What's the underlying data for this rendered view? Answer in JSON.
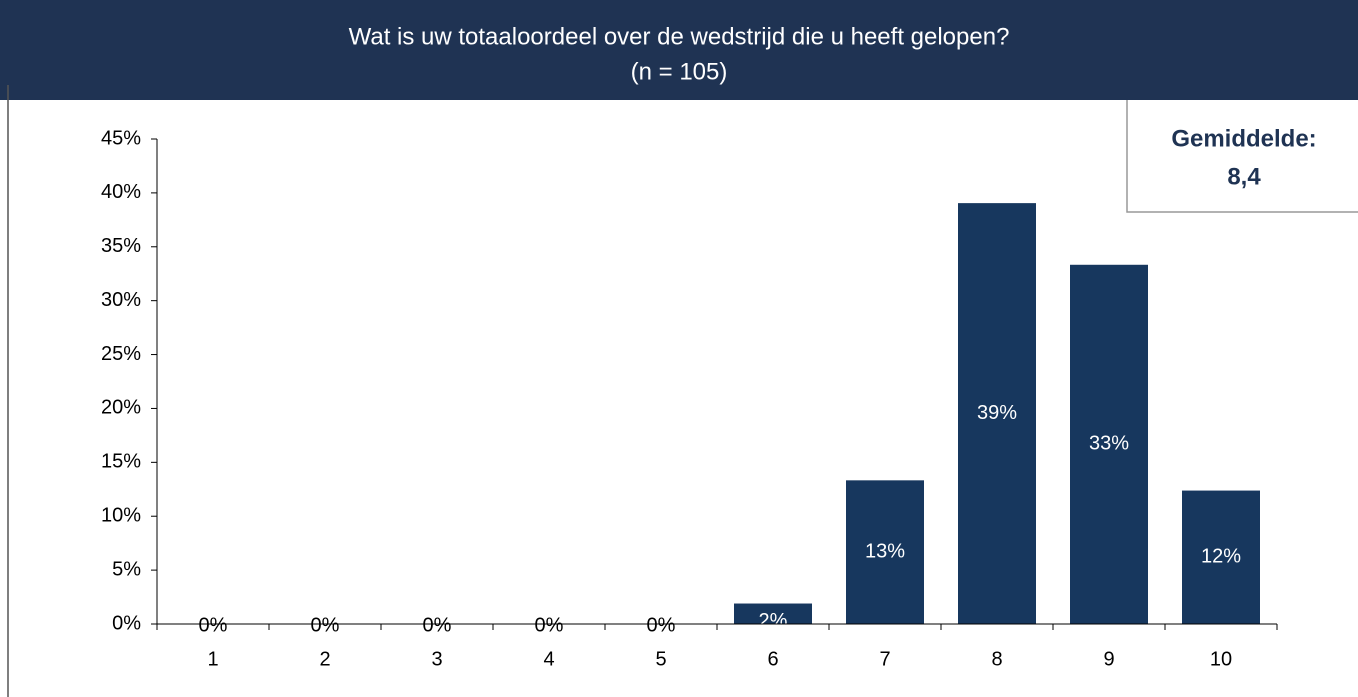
{
  "chart_data": {
    "type": "bar",
    "title": "Wat is uw totaaloordeel over de wedstrijd die u heeft gelopen?",
    "subtitle": "(n = 105)",
    "annotation": {
      "label": "Gemiddelde:",
      "value": "8,4"
    },
    "categories": [
      "1",
      "2",
      "3",
      "4",
      "5",
      "6",
      "7",
      "8",
      "9",
      "10"
    ],
    "values": [
      0,
      0,
      0,
      0,
      0,
      1.9,
      13.33,
      39.05,
      33.33,
      12.38
    ],
    "value_labels": [
      "0%",
      "0%",
      "0%",
      "0%",
      "0%",
      "2%",
      "13%",
      "39%",
      "33%",
      "12%"
    ],
    "color": "#17375e",
    "ylim": [
      0,
      45
    ],
    "yticks": [
      {
        "value": 0,
        "label": "0%"
      },
      {
        "value": 5,
        "label": "5%"
      },
      {
        "value": 10,
        "label": "10%"
      },
      {
        "value": 15,
        "label": "15%"
      },
      {
        "value": 20,
        "label": "20%"
      },
      {
        "value": 25,
        "label": "25%"
      },
      {
        "value": 30,
        "label": "30%"
      },
      {
        "value": 35,
        "label": "35%"
      },
      {
        "value": 40,
        "label": "40%"
      },
      {
        "value": 45,
        "label": "45%"
      }
    ],
    "grid": false
  }
}
